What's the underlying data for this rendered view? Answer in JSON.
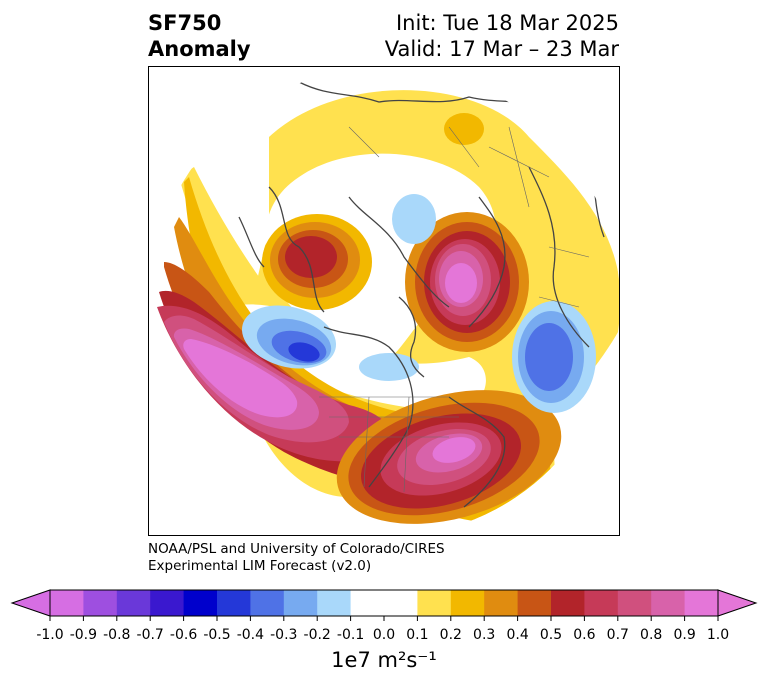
{
  "header": {
    "variable": "SF750",
    "field_type": "Anomaly",
    "init": "Init: Tue 18 Mar 2025",
    "valid": "Valid: 17 Mar – 23 Mar"
  },
  "credit": {
    "line1": "NOAA/PSL and University of Colorado/CIRES",
    "line2": "Experimental LIM Forecast (v2.0)"
  },
  "colorbar": {
    "levels": [
      "-1.0",
      "-0.9",
      "-0.8",
      "-0.7",
      "-0.6",
      "-0.5",
      "-0.4",
      "-0.3",
      "-0.2",
      "-0.1",
      "0.0",
      "0.1",
      "0.2",
      "0.3",
      "0.4",
      "0.5",
      "0.6",
      "0.7",
      "0.8",
      "0.9",
      "1.0"
    ],
    "colors": [
      "#d66ee3",
      "#9e4fe0",
      "#6a38d9",
      "#3a18cf",
      "#0000cc",
      "#2438d8",
      "#4f72e6",
      "#77aaf0",
      "#a9d8fa",
      "#ffffff",
      "#ffffff",
      "#ffe14f",
      "#f2b800",
      "#e08c10",
      "#c85515",
      "#b2242a",
      "#c63a58",
      "#d0507e",
      "#d862aa",
      "#e476d8"
    ],
    "extend_low_color": "#d66ee3",
    "extend_high_color": "#e476d8",
    "units": "1e7 m²s⁻¹"
  }
}
